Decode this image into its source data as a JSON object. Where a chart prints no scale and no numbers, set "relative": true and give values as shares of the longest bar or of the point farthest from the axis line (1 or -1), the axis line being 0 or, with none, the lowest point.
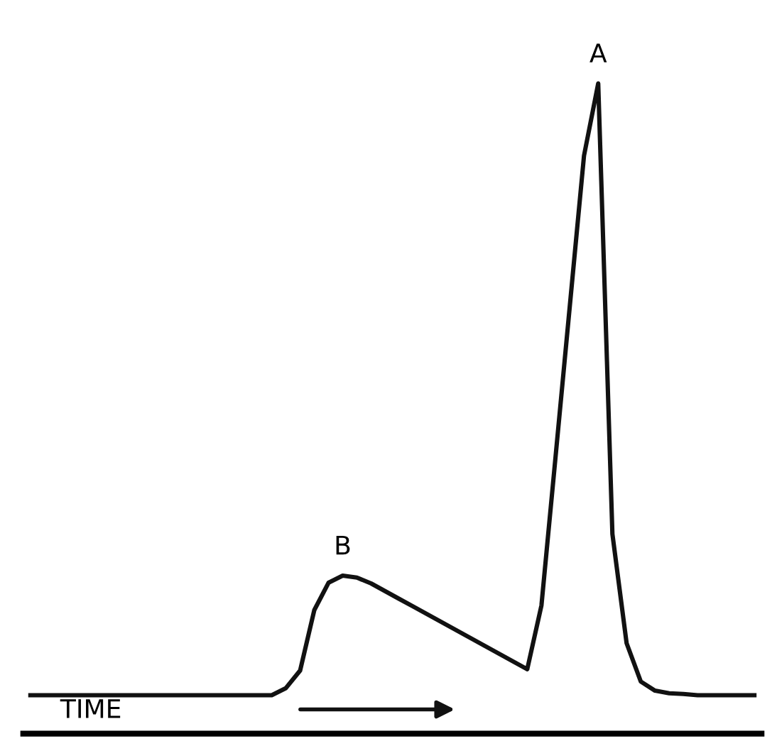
{
  "chart_data": {
    "type": "line",
    "relative": true,
    "xlabel": "TIME",
    "categories": [
      null,
      null,
      null,
      null,
      null,
      null,
      null,
      null,
      null,
      null,
      null,
      null,
      null,
      null,
      null,
      null,
      null,
      null,
      null,
      null,
      null,
      null,
      null,
      null,
      null,
      null,
      null,
      null,
      null,
      null,
      null,
      null,
      null,
      null,
      null,
      null,
      null,
      null,
      null,
      null,
      null,
      null,
      null,
      null,
      null,
      null,
      null,
      null,
      null,
      null,
      null,
      null
    ],
    "series": [
      {
        "color": "#111111",
        "values": [
          0.059,
          0.059,
          0.059,
          0.059,
          0.059,
          0.059,
          0.059,
          0.059,
          0.059,
          0.059,
          0.059,
          0.059,
          0.059,
          0.059,
          0.059,
          0.059,
          0.059,
          0.059,
          0.07,
          0.097,
          0.19,
          0.232,
          0.243,
          0.24,
          0.231,
          0.219,
          0.207,
          0.195,
          0.183,
          0.171,
          0.159,
          0.147,
          0.135,
          0.123,
          0.111,
          0.099,
          0.197,
          0.427,
          0.658,
          0.889,
          1,
          0.307,
          0.139,
          0.08,
          0.066,
          0.062,
          0.061,
          0.059,
          0.059,
          0.059,
          0.059,
          0.059
        ]
      }
    ],
    "annotations": [
      {
        "text": "A",
        "y": 1
      },
      {
        "text": "B",
        "y": 0.243
      }
    ],
    "grid": false,
    "legend": false,
    "marker": "none",
    "line_style": "solid"
  }
}
